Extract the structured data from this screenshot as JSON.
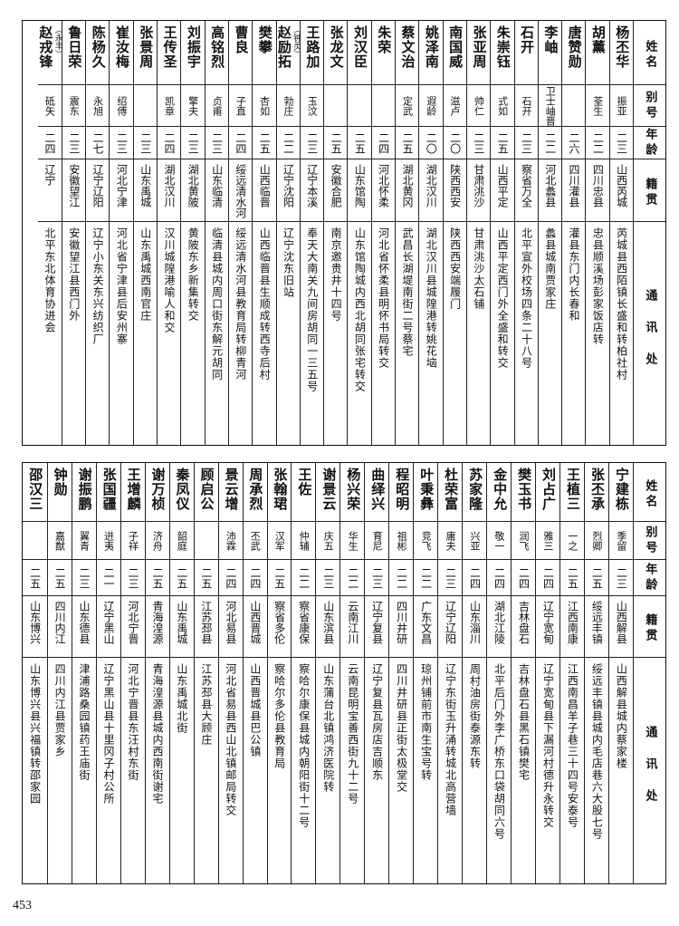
{
  "headers": {
    "name": "姓名",
    "alias": "别号",
    "age": "年龄",
    "native": "籍贯",
    "address": "通讯处"
  },
  "top_rows": [
    {
      "name": "杨丕华",
      "alias": "振亚",
      "age": "二三",
      "native": "山西芮城",
      "address": "芮城县西陌镇长盛和转柏社村"
    },
    {
      "name": "胡薰",
      "alias": "荃生",
      "age": "二二",
      "native": "四川忠县",
      "address": "忠县顺溪场彭家饭店转"
    },
    {
      "name": "唐赞勋",
      "alias": "",
      "age": "二六",
      "native": "四川灌县",
      "address": "灌县东门内长春和"
    },
    {
      "name": "李岫",
      "alias": "卫士岫晋",
      "age": "二二",
      "native": "河北蠡县",
      "address": "蠡县城南贾家庄"
    },
    {
      "name": "石开",
      "alias": "石开",
      "age": "二三",
      "native": "察省万全",
      "address": "北平宣外校场四条二十八号"
    },
    {
      "name": "朱崇钰",
      "alias": "式如",
      "age": "二五",
      "native": "山西平定",
      "address": "山西平定西门外全盛和转交"
    },
    {
      "name": "张亚周",
      "alias": "帅仁",
      "age": "二三",
      "native": "甘肃洮沙",
      "address": "甘肃洮沙太石铺"
    },
    {
      "name": "南国威",
      "alias": "滋卢",
      "age": "二〇",
      "native": "陕西西安",
      "address": "陕西西安端履门"
    },
    {
      "name": "姚泽南",
      "alias": "遐龄",
      "age": "二〇",
      "native": "湖北汉川",
      "address": "湖北汉川县城隍港转姚花垴"
    },
    {
      "name": "蔡文治",
      "alias": "定武",
      "age": "二五",
      "native": "湖北黄冈",
      "address": "武昌长湖堤南街二号蔡宅"
    },
    {
      "name": "朱荣",
      "alias": "",
      "age": "二四",
      "native": "河北怀柔",
      "address": "河北省怀柔县明怀书局转交"
    },
    {
      "name": "刘汉臣",
      "alias": "",
      "age": "二五",
      "native": "山东馆陶",
      "address": "山东馆陶城内西北胡同张宅转交"
    },
    {
      "name": "张龙文",
      "alias": "",
      "age": "二五",
      "native": "安徽合肥",
      "address": "南京邀贵井十四号"
    },
    {
      "name": "王路加",
      "alias": "玉汶",
      "age": "二三",
      "native": "辽宁本溪",
      "address": "奉天大南关九间房胡同一三五号"
    },
    {
      "name": "赵励拓",
      "note": "（钟灵）",
      "alias": "勃庄",
      "age": "二二",
      "native": "辽宁沈阳",
      "address": "辽宁沈东旧站"
    },
    {
      "name": "樊攀",
      "alias": "杏如",
      "age": "二五",
      "native": "山西临晋",
      "address": "山西临晋县生顺成转西寺后村"
    },
    {
      "name": "曹良",
      "alias": "子直",
      "age": "二四",
      "native": "绥远清水河",
      "address": "绥远清水河县教育局转柳青河"
    },
    {
      "name": "高铭烈",
      "alias": "贞甫",
      "age": "二三",
      "native": "山东临清",
      "address": "临清县城内周口街东解元胡同"
    },
    {
      "name": "刘振宇",
      "alias": "擎夫",
      "age": "二三",
      "native": "湖北黄陂",
      "address": "黄陂东乡新集转交"
    },
    {
      "name": "王传圣",
      "alias": "凯章",
      "age": "二四",
      "native": "湖北汉川",
      "address": "汉川城隍港喻人和交"
    },
    {
      "name": "张景周",
      "alias": "",
      "age": "二三",
      "native": "山东禹城",
      "address": "山东禹城西南官庄"
    },
    {
      "name": "崔汝梅",
      "alias": "绍傅",
      "age": "二三",
      "native": "河北宁津",
      "address": "河北省宁津县后安州寨"
    },
    {
      "name": "陈杨久",
      "alias": "永旭",
      "age": "二七",
      "native": "辽宁辽阳",
      "address": "辽宁小东关东兴纺织厂"
    },
    {
      "name": "鲁日荣",
      "alias": "震东",
      "age": "二三",
      "native": "安徽望江",
      "address": "安徽望江县西门外"
    },
    {
      "name": "赵戎锋",
      "note": "（永丰）",
      "alias": "砥矢",
      "age": "二四",
      "native": "辽宁",
      "address": "北平东北体育协进会"
    }
  ],
  "bottom_rows": [
    {
      "name": "宁建栋",
      "alias": "季留",
      "age": "二三",
      "native": "山西解县",
      "address": "山西解县城内蔡家楼"
    },
    {
      "name": "张丕承",
      "alias": "烈卿",
      "age": "二五",
      "native": "绥远丰镇",
      "address": "绥远丰镇县城内毛店巷六大股七号"
    },
    {
      "name": "王植三",
      "alias": "一之",
      "age": "二五",
      "native": "江西南康",
      "address": "江西南昌羊子巷三十四号安泰号"
    },
    {
      "name": "刘占广",
      "alias": "雅三",
      "age": "二四",
      "native": "辽宁宽甸",
      "address": "辽宁宽甸县下漏河村德升永转交"
    },
    {
      "name": "樊玉书",
      "alias": "润飞",
      "age": "二四",
      "native": "吉林盘石",
      "address": "吉林盘石县黑石镇樊宅"
    },
    {
      "name": "金中允",
      "alias": "敬一",
      "age": "二四",
      "native": "湖北江陵",
      "address": "北平后门外李广桥东口袋胡同六号"
    },
    {
      "name": "苏家隆",
      "alias": "兴亚",
      "age": "二四",
      "native": "山东淄川",
      "address": "周村油房街泰源东转"
    },
    {
      "name": "杜荣富",
      "alias": "庸夫",
      "age": "二三",
      "native": "辽宁辽阳",
      "address": "辽宁东街玉升涌转城北高营墙"
    },
    {
      "name": "叶秉彝",
      "alias": "竞飞",
      "age": "二二",
      "native": "广东文昌",
      "address": "琼州铺前市南生宝号转"
    },
    {
      "name": "程昭明",
      "alias": "祖彬",
      "age": "二二",
      "native": "四川井研",
      "address": "四川井研县正街太极堂交"
    },
    {
      "name": "曲绎兴",
      "alias": "育尼",
      "age": "二三",
      "native": "辽宁复县",
      "address": "辽宁复县瓦房店吉顺东"
    },
    {
      "name": "杨兴荣",
      "alias": "华生",
      "age": "二二",
      "native": "云南江川",
      "address": "云南昆明宝善西街九十二号"
    },
    {
      "name": "谢景云",
      "alias": "庆五",
      "age": "二三",
      "native": "山东滨县",
      "address": "山东蒲台北镇鸿济医院转"
    },
    {
      "name": "王佐",
      "alias": "仲辅",
      "age": "二二",
      "native": "察省康保",
      "address": "察哈尔康保县城内朝阳街十二号"
    },
    {
      "name": "张翰珺",
      "alias": "汉军",
      "age": "二五",
      "native": "察省多伦",
      "address": "察哈尔多伦县教育局"
    },
    {
      "name": "周承烈",
      "alias": "丕武",
      "age": "二四",
      "native": "山西晋城",
      "address": "山西晋城县巴公镇"
    },
    {
      "name": "景云增",
      "alias": "沛霖",
      "age": "二四",
      "native": "河北易县",
      "address": "河北省易县西山北镇邮局转交"
    },
    {
      "name": "顾启公",
      "alias": "",
      "age": "二五",
      "native": "江苏邳县",
      "address": "江苏邳县大顾庄"
    },
    {
      "name": "秦凤仪",
      "alias": "韶庭",
      "age": "二五",
      "native": "山东禹城",
      "address": "山东禹城北街"
    },
    {
      "name": "谢万桢",
      "alias": "济舟",
      "age": "二五",
      "native": "青海湟源",
      "address": "青海湟源县城内西南街谢宅"
    },
    {
      "name": "王增麟",
      "alias": "子祥",
      "age": "二三",
      "native": "河北宁晋",
      "address": "河北宁晋县东汪村东街"
    },
    {
      "name": "张国疆",
      "alias": "逬夷",
      "age": "二一",
      "native": "辽宁黑山",
      "address": "辽宁黑山县十里冈子村公所"
    },
    {
      "name": "谢振鹏",
      "alias": "翼青",
      "age": "二三",
      "native": "山东德县",
      "address": "津浦路桑园镇药王庙街"
    },
    {
      "name": "钟勋",
      "alias": "嘉猷",
      "age": "二五",
      "native": "四川内江",
      "address": "四川内江县贾家乡"
    },
    {
      "name": "邵汉三",
      "alias": "",
      "age": "二五",
      "native": "山东博兴",
      "address": "山东博兴县兴福镇转邵家园"
    }
  ],
  "page_number": "453"
}
